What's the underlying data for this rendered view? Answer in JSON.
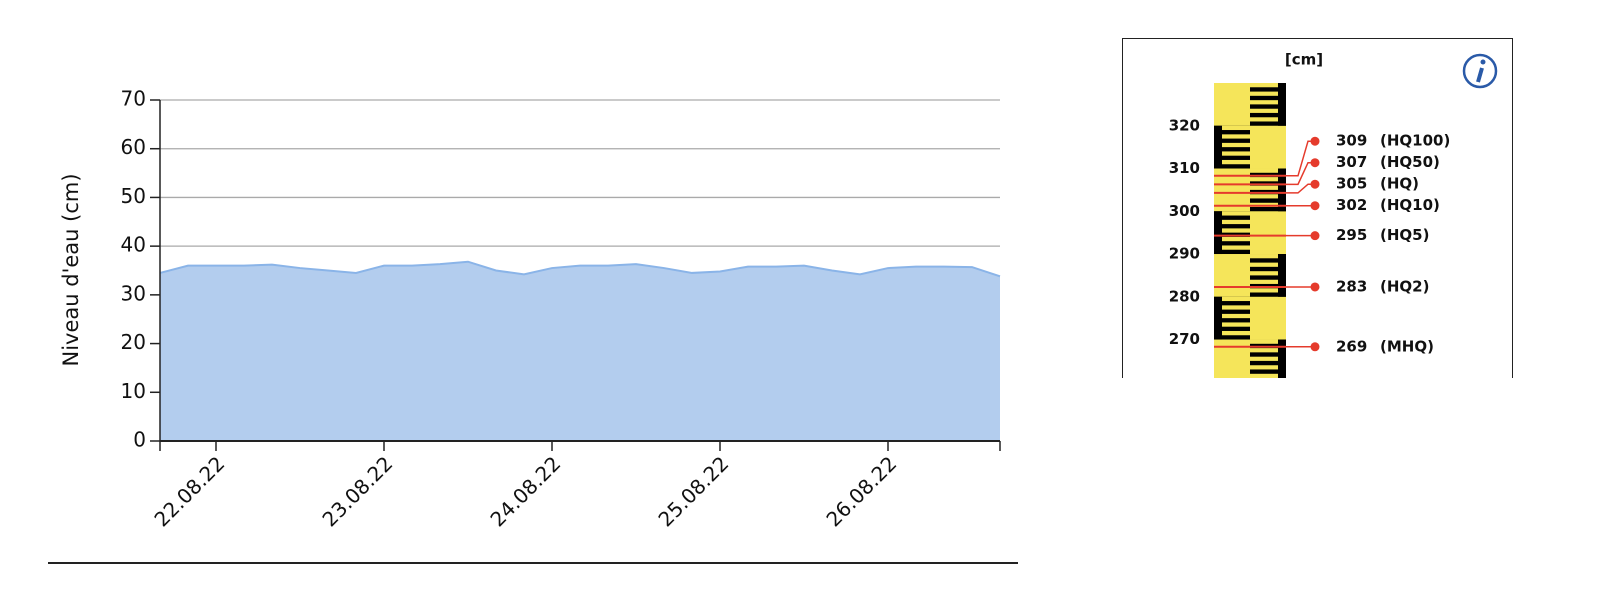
{
  "chart_data": [
    {
      "type": "area",
      "ylabel": "Niveau d'eau (cm)",
      "categories": [
        null,
        null,
        "22.08.22",
        null,
        null,
        null,
        null,
        null,
        "23.08.22",
        null,
        null,
        null,
        null,
        null,
        "24.08.22",
        null,
        null,
        null,
        null,
        null,
        "25.08.22",
        null,
        null,
        null,
        null,
        null,
        "26.08.22",
        null,
        null,
        null,
        null
      ],
      "values": [
        34.5,
        36,
        36,
        36,
        36.2,
        35.5,
        35,
        34.5,
        36,
        36,
        36.3,
        36.8,
        35,
        34.2,
        35.5,
        36,
        36,
        36.3,
        35.5,
        34.5,
        34.8,
        35.8,
        35.8,
        36,
        35,
        34.2,
        35.5,
        35.8,
        35.8,
        35.7,
        33.8
      ],
      "color": "#b3cdee",
      "line_color": "#8ab4e8",
      "ylim": [
        0,
        70
      ],
      "yticks": [
        0,
        10,
        20,
        30,
        40,
        50,
        60,
        70
      ],
      "grid": true
    },
    {
      "type": "gauge",
      "unit": "[cm]",
      "ylim": [
        261,
        330
      ],
      "yticks": [
        270,
        280,
        290,
        300,
        310,
        320
      ],
      "color": "#e53b2c",
      "levels": [
        {
          "value": 309,
          "label": "(HQ100)"
        },
        {
          "value": 307,
          "label": "(HQ50)"
        },
        {
          "value": 305,
          "label": "(HQ)"
        },
        {
          "value": 302,
          "label": "(HQ10)"
        },
        {
          "value": 295,
          "label": "(HQ5)"
        },
        {
          "value": 283,
          "label": "(HQ2)"
        },
        {
          "value": 269,
          "label": "(MHQ)"
        }
      ]
    }
  ]
}
